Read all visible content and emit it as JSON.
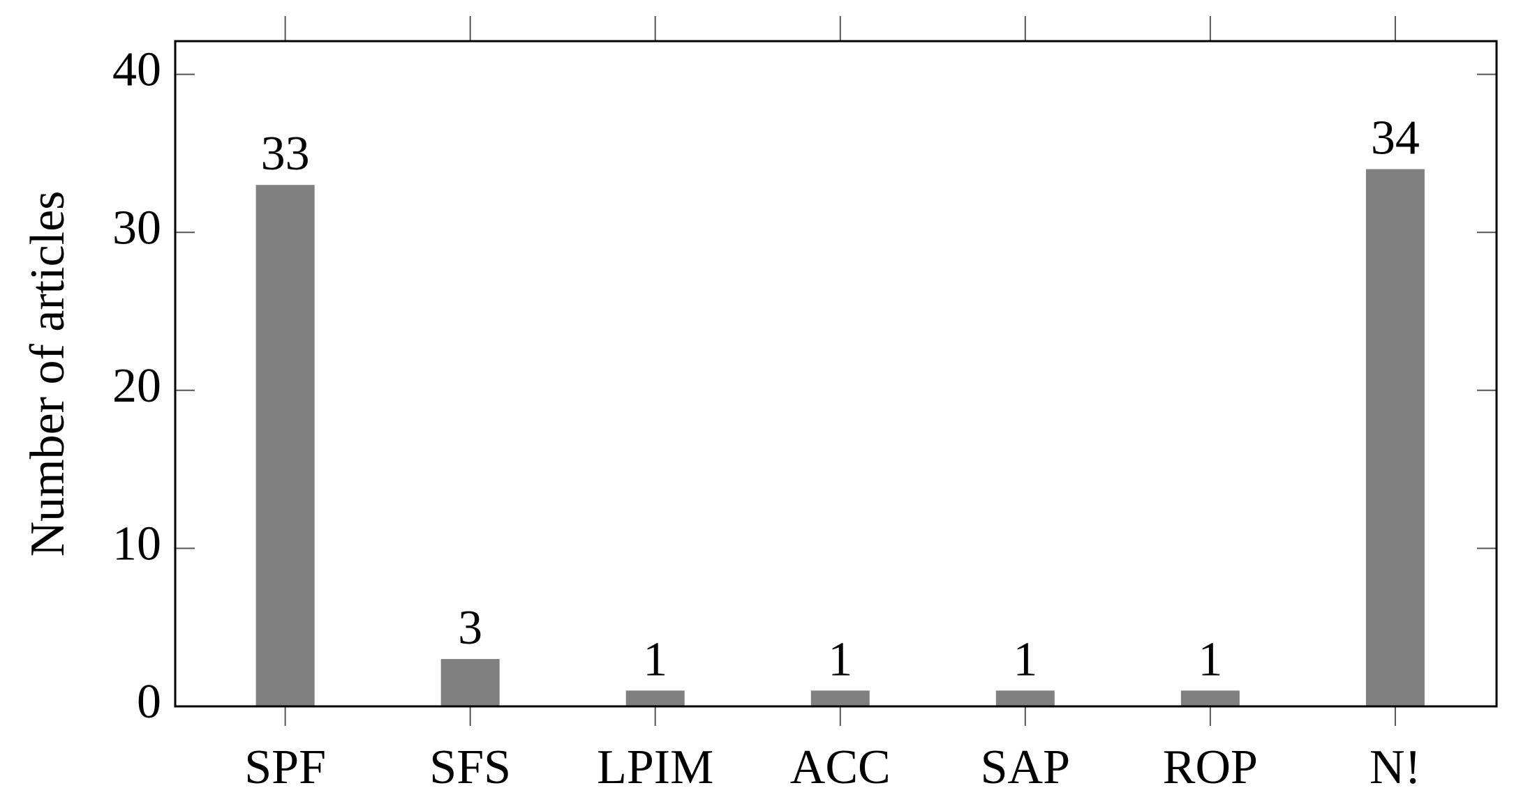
{
  "chart_data": {
    "type": "bar",
    "y_label": "Number of articles",
    "categories": [
      "SPF",
      "SFS",
      "LPIM",
      "ACC",
      "SAP",
      "ROP",
      "N!"
    ],
    "values": [
      33,
      3,
      1,
      1,
      1,
      1,
      34
    ],
    "color": "#808080",
    "ylim": [
      0,
      42.1
    ],
    "yticks": [
      0,
      10,
      20,
      30,
      40
    ]
  }
}
